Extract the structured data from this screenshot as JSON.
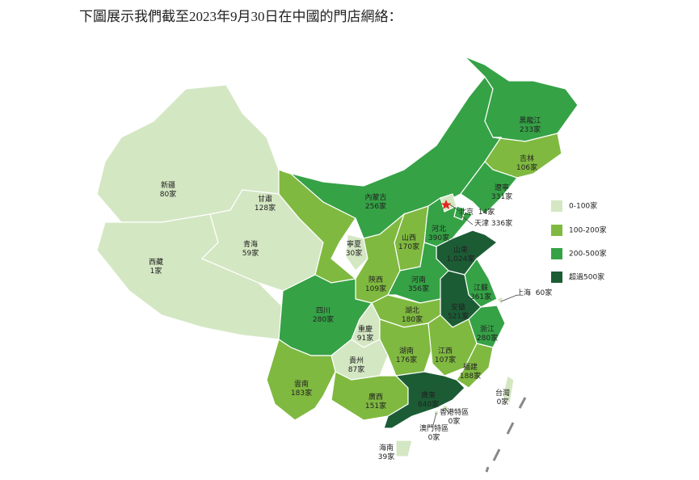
{
  "title": "下圖展示我們截至2023年9月30日在中國的門店網絡：",
  "legend": [
    {
      "label": "0-100家",
      "color": "#d4e7c3"
    },
    {
      "label": "100-200家",
      "color": "#80b940"
    },
    {
      "label": "200-500家",
      "color": "#35a246"
    },
    {
      "label": "超過500家",
      "color": "#1c5c35"
    }
  ],
  "regions": [
    {
      "name": "新疆",
      "stores": "80家",
      "color": "#d4e7c3"
    },
    {
      "name": "西藏",
      "stores": "1家",
      "color": "#d4e7c3"
    },
    {
      "name": "青海",
      "stores": "59家",
      "color": "#d4e7c3"
    },
    {
      "name": "甘肅",
      "stores": "128家",
      "color": "#80b940"
    },
    {
      "name": "內蒙古",
      "stores": "256家",
      "color": "#35a246"
    },
    {
      "name": "黑龍江",
      "stores": "233家",
      "color": "#35a246"
    },
    {
      "name": "吉林",
      "stores": "106家",
      "color": "#80b940"
    },
    {
      "name": "遼寧",
      "stores": "331家",
      "color": "#35a246"
    },
    {
      "name": "北京",
      "stores": "14家",
      "color": "#d4e7c3"
    },
    {
      "name": "天津",
      "stores": "336家",
      "color": "#35a246"
    },
    {
      "name": "河北",
      "stores": "390家",
      "color": "#35a246"
    },
    {
      "name": "山西",
      "stores": "170家",
      "color": "#80b940"
    },
    {
      "name": "寧夏",
      "stores": "30家",
      "color": "#d4e7c3"
    },
    {
      "name": "陝西",
      "stores": "109家",
      "color": "#80b940"
    },
    {
      "name": "山東",
      "stores": "1,024家",
      "color": "#1c5c35"
    },
    {
      "name": "河南",
      "stores": "356家",
      "color": "#35a246"
    },
    {
      "name": "江蘇",
      "stores": "361家",
      "color": "#35a246"
    },
    {
      "name": "上海",
      "stores": "60家",
      "color": "#d4e7c3"
    },
    {
      "name": "安徽",
      "stores": "521家",
      "color": "#1c5c35"
    },
    {
      "name": "湖北",
      "stores": "180家",
      "color": "#80b940"
    },
    {
      "name": "四川",
      "stores": "280家",
      "color": "#35a246"
    },
    {
      "name": "重慶",
      "stores": "91家",
      "color": "#d4e7c3"
    },
    {
      "name": "浙江",
      "stores": "280家",
      "color": "#35a246"
    },
    {
      "name": "湖南",
      "stores": "176家",
      "color": "#80b940"
    },
    {
      "name": "江西",
      "stores": "107家",
      "color": "#80b940"
    },
    {
      "name": "貴州",
      "stores": "87家",
      "color": "#d4e7c3"
    },
    {
      "name": "福建",
      "stores": "188家",
      "color": "#80b940"
    },
    {
      "name": "雲南",
      "stores": "183家",
      "color": "#80b940"
    },
    {
      "name": "廣西",
      "stores": "151家",
      "color": "#80b940"
    },
    {
      "name": "廣東",
      "stores": "840家",
      "color": "#1c5c35"
    },
    {
      "name": "香港特區",
      "stores": "0家",
      "color": "#d4e7c3"
    },
    {
      "name": "澳門特區",
      "stores": "0家",
      "color": "#d4e7c3"
    },
    {
      "name": "台灣",
      "stores": "0家",
      "color": "#d4e7c3"
    },
    {
      "name": "海南",
      "stores": "39家",
      "color": "#d4e7c3"
    }
  ]
}
